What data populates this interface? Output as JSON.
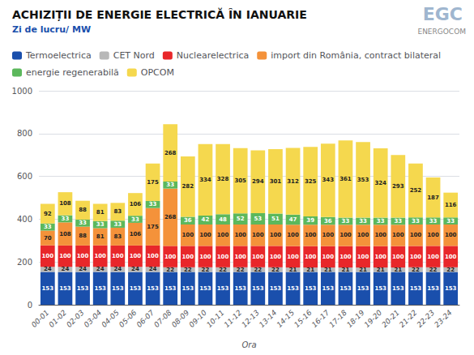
{
  "chart_data": {
    "type": "bar",
    "title": "ACHIZIȚII DE ENERGIE ELECTRICĂ ÎN IANUARIE",
    "subtitle": "Zi de lucru/ MW",
    "x_label": "Ora",
    "annotations": [
      "EGC",
      "ENERGOCOM"
    ],
    "categories": [
      "00-01",
      "01-02",
      "02-03",
      "03-04",
      "04-05",
      "05-06",
      "06-07",
      "07-08",
      "08-09",
      "09-10",
      "10-11",
      "11-12",
      "12-13",
      "13-14",
      "14-15",
      "15-16",
      "16-17",
      "17-18",
      "18-19",
      "19-20",
      "20-21",
      "21-22",
      "22-23",
      "23-24"
    ],
    "series": [
      {
        "name": "Termoelectrica",
        "color": "#1a4fac",
        "values": [
          153,
          153,
          153,
          153,
          153,
          153,
          153,
          153,
          153,
          153,
          153,
          153,
          153,
          153,
          153,
          153,
          153,
          153,
          153,
          153,
          153,
          153,
          153,
          153
        ]
      },
      {
        "name": "CET Nord",
        "color": "#b8b8b8",
        "values": [
          24,
          24,
          24,
          24,
          24,
          24,
          24,
          22,
          22,
          22,
          22,
          22,
          22,
          22,
          21,
          21,
          21,
          21,
          21,
          21,
          21,
          22,
          22,
          22
        ]
      },
      {
        "name": "Nuclearelectrica",
        "color": "#e8272a",
        "values": [
          100,
          100,
          100,
          100,
          100,
          100,
          100,
          100,
          100,
          100,
          100,
          100,
          100,
          100,
          100,
          100,
          100,
          100,
          100,
          100,
          100,
          100,
          100,
          100
        ]
      },
      {
        "name": "import din România, contract bilateral",
        "color": "#f4923a",
        "values": [
          70,
          108,
          88,
          81,
          83,
          106,
          175,
          268,
          100,
          100,
          100,
          100,
          100,
          100,
          100,
          100,
          100,
          100,
          100,
          100,
          100,
          100,
          100,
          100
        ]
      },
      {
        "name": "energie regenerabilă",
        "color": "#5cb85c",
        "values": [
          33,
          33,
          33,
          33,
          33,
          33,
          33,
          33,
          36,
          42,
          48,
          52,
          53,
          51,
          47,
          39,
          36,
          33,
          33,
          33,
          33,
          33,
          33,
          33
        ]
      },
      {
        "name": "OPCOM",
        "color": "#f5d84e",
        "values": [
          92,
          108,
          88,
          81,
          83,
          106,
          175,
          268,
          282,
          334,
          328,
          305,
          294,
          301,
          312,
          325,
          343,
          361,
          353,
          324,
          293,
          252,
          187,
          116
        ]
      }
    ],
    "ylim": [
      0,
      1000
    ],
    "yticks": [
      0,
      200,
      400,
      600,
      800,
      1000
    ],
    "stacked": true,
    "data_labels": true,
    "grid": true,
    "legend": "top"
  }
}
